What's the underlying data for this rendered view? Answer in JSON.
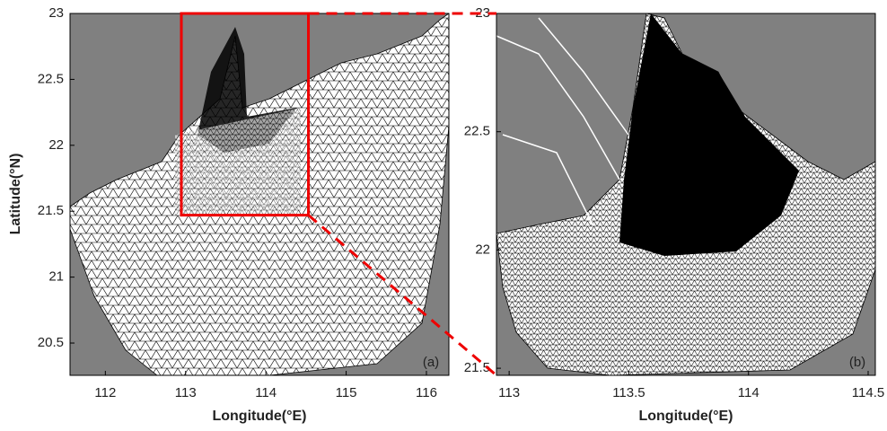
{
  "chart_data": [
    {
      "type": "map",
      "panel_label": "(a)",
      "xlabel": "Longitude(°E)",
      "ylabel": "Latitude(°N)",
      "xlim": [
        111.56,
        116.28
      ],
      "ylim": [
        20.255,
        23
      ],
      "xticks": [
        112,
        113,
        114,
        115,
        116
      ],
      "yticks": [
        20.5,
        21,
        21.5,
        22,
        22.5,
        23
      ]
    },
    {
      "type": "map",
      "panel_label": "(b)",
      "xlabel": "Longitude(°E)",
      "xlim": [
        112.947,
        114.53
      ],
      "ylim": [
        21.47,
        23
      ],
      "xticks": [
        113,
        113.5,
        114,
        114.5
      ],
      "yticks": [
        21.5,
        22,
        22.5,
        23
      ]
    }
  ]
}
